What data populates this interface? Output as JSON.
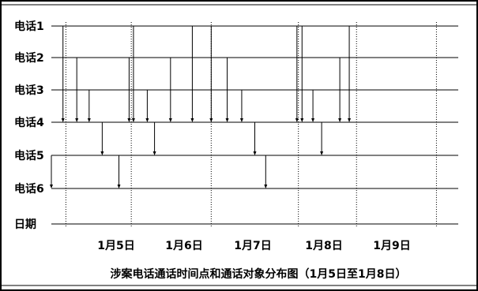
{
  "chart_data": {
    "type": "scatter",
    "title": "涉案电话通话时间点和通话对象分布图（1月5日至1月8日）",
    "y_categories": [
      "电话1",
      "电话2",
      "电话3",
      "电话4",
      "电话5",
      "电话6",
      "日期"
    ],
    "x_ticks": [
      "1月5日",
      "1月6日",
      "1月7日",
      "1月8日",
      "1月9日"
    ],
    "x_range": [
      4.0,
      9.6
    ],
    "grid": true,
    "calls": [
      {
        "t": 4.0,
        "from": "电话5",
        "to": "电话6"
      },
      {
        "t": 4.16,
        "from": "电话1",
        "to": "电话4"
      },
      {
        "t": 4.35,
        "from": "电话2",
        "to": "电话4"
      },
      {
        "t": 4.52,
        "from": "电话3",
        "to": "电话4"
      },
      {
        "t": 4.7,
        "from": "电话4",
        "to": "电话5"
      },
      {
        "t": 4.93,
        "from": "电话5",
        "to": "电话6"
      },
      {
        "t": 5.07,
        "from": "电话2",
        "to": "电话4"
      },
      {
        "t": 5.13,
        "from": "电话1",
        "to": "电话4"
      },
      {
        "t": 5.32,
        "from": "电话3",
        "to": "电话4"
      },
      {
        "t": 5.42,
        "from": "电话4",
        "to": "电话5"
      },
      {
        "t": 5.64,
        "from": "电话2",
        "to": "电话4"
      },
      {
        "t": 5.94,
        "from": "电话1",
        "to": "电话4"
      },
      {
        "t": 6.2,
        "from": "电话1",
        "to": "电话4"
      },
      {
        "t": 6.42,
        "from": "电话2",
        "to": "电话4"
      },
      {
        "t": 6.62,
        "from": "电话3",
        "to": "电话4"
      },
      {
        "t": 6.8,
        "from": "电话4",
        "to": "电话5"
      },
      {
        "t": 6.95,
        "from": "电话5",
        "to": "电话6"
      },
      {
        "t": 7.38,
        "from": "电话1",
        "to": "电话4"
      },
      {
        "t": 7.45,
        "from": "电话1",
        "to": "电话4"
      },
      {
        "t": 7.6,
        "from": "电话3",
        "to": "电话4"
      },
      {
        "t": 7.72,
        "from": "电话4",
        "to": "电话5"
      },
      {
        "t": 7.97,
        "from": "电话2",
        "to": "电话4"
      },
      {
        "t": 8.1,
        "from": "电话1",
        "to": "电话4"
      }
    ],
    "day_boundaries": [
      4.2,
      5.1,
      6.2,
      7.4,
      8.2,
      9.3
    ]
  }
}
